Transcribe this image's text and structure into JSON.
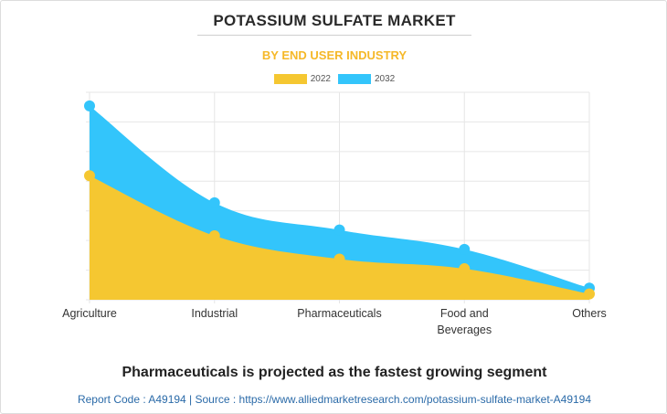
{
  "header": {
    "title": "POTASSIUM SULFATE MARKET",
    "subtitle": "BY END USER INDUSTRY"
  },
  "chart_data": {
    "type": "area",
    "title": "POTASSIUM SULFATE MARKET",
    "subtitle": "BY END USER INDUSTRY",
    "categories": [
      "Agriculture",
      "Industrial",
      "Pharmaceuticals",
      "Food and Beverages",
      "Others"
    ],
    "category_lines": [
      [
        "Agriculture"
      ],
      [
        "Industrial"
      ],
      [
        "Pharmaceuticals"
      ],
      [
        "Food and",
        "Beverages"
      ],
      [
        "Others"
      ]
    ],
    "series": [
      {
        "name": "2032",
        "values": [
          100,
          50,
          36,
          26,
          6
        ],
        "color": "#33c5fb"
      },
      {
        "name": "2022",
        "values": [
          64,
          33,
          21,
          16,
          3
        ],
        "color": "#f5c731"
      }
    ],
    "ylim": [
      0,
      107
    ],
    "grid": true,
    "y_tick_labels_shown": false,
    "legend_position": "top-center"
  },
  "headline": "Pharmaceuticals is projected as the fastest growing segment",
  "footer": "Report Code : A49194  |  Source : https://www.alliedmarketresearch.com/potassium-sulfate-market-A49194"
}
